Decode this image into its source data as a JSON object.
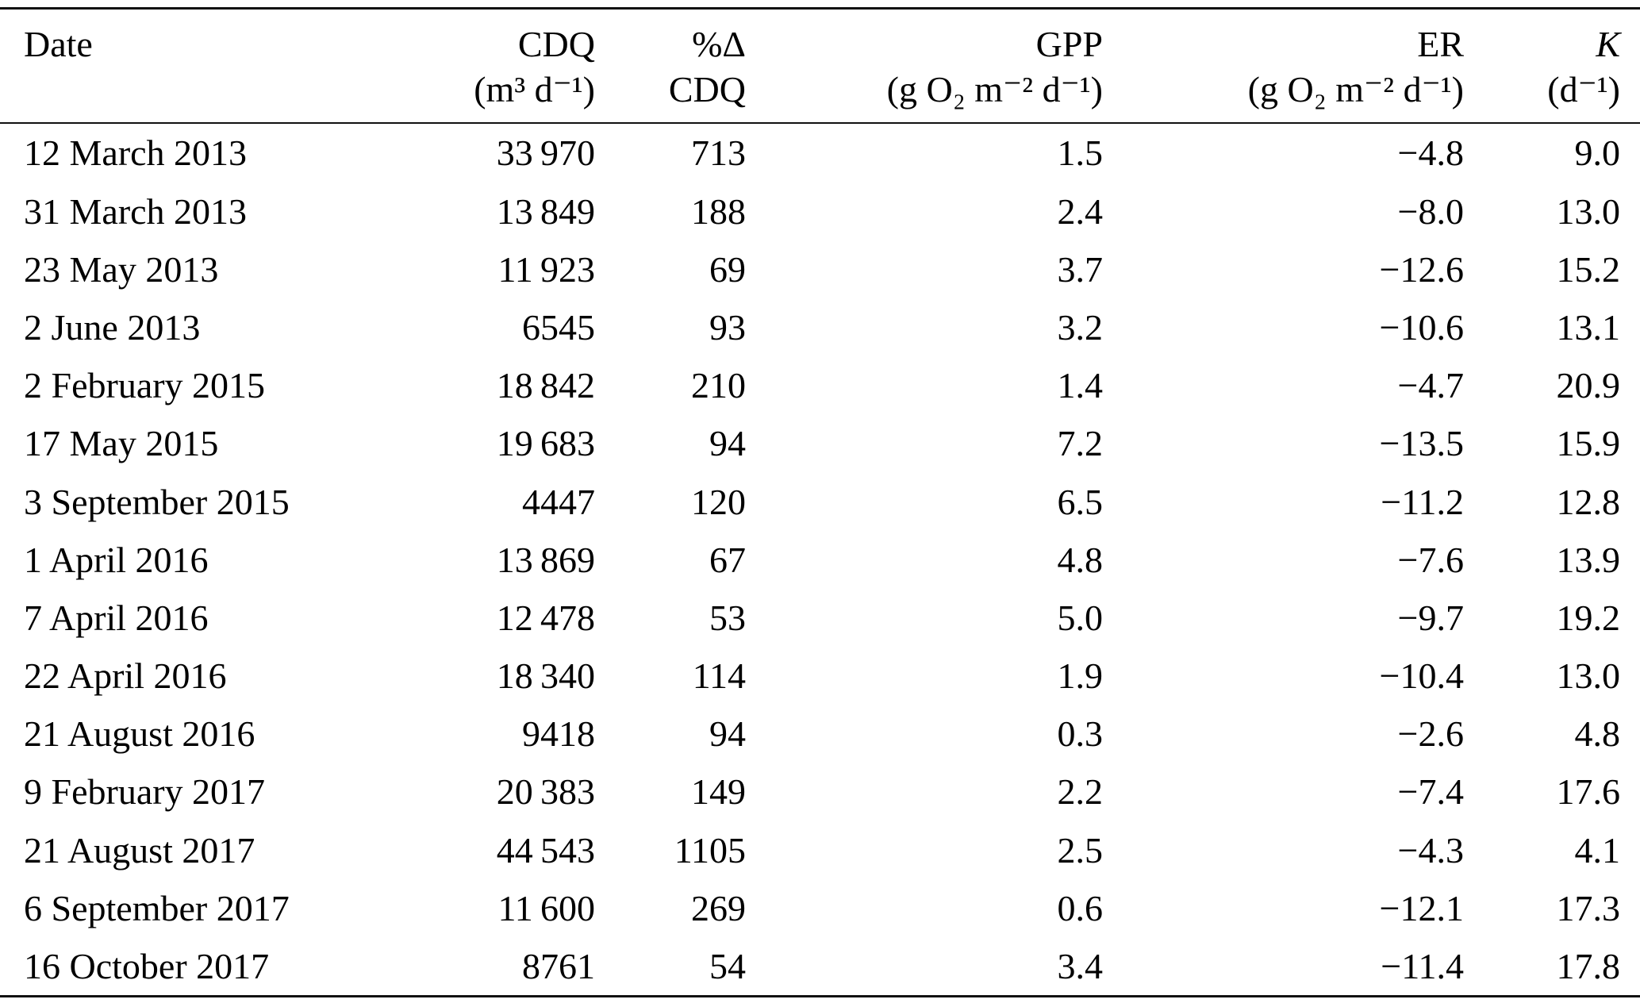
{
  "table": {
    "columns": [
      {
        "key": "date",
        "label": "Date",
        "unit": ""
      },
      {
        "key": "cdq",
        "label": "CDQ",
        "unit": "(m³ d⁻¹)"
      },
      {
        "key": "pct-delta-cdq",
        "label": "%Δ",
        "unit": "CDQ"
      },
      {
        "key": "gpp",
        "label": "GPP",
        "unit": "(g O₂ m⁻² d⁻¹)"
      },
      {
        "key": "er",
        "label": "ER",
        "unit": "(g O₂ m⁻² d⁻¹)"
      },
      {
        "key": "k",
        "label": "K",
        "unit": "(d⁻¹)",
        "italic": true
      }
    ],
    "rows": [
      [
        "12 March 2013",
        "33 970",
        "713",
        "1.5",
        "−4.8",
        "9.0"
      ],
      [
        "31 March 2013",
        "13 849",
        "188",
        "2.4",
        "−8.0",
        "13.0"
      ],
      [
        "23 May 2013",
        "11 923",
        "69",
        "3.7",
        "−12.6",
        "15.2"
      ],
      [
        "2 June 2013",
        "6545",
        "93",
        "3.2",
        "−10.6",
        "13.1"
      ],
      [
        "2 February 2015",
        "18 842",
        "210",
        "1.4",
        "−4.7",
        "20.9"
      ],
      [
        "17 May 2015",
        "19 683",
        "94",
        "7.2",
        "−13.5",
        "15.9"
      ],
      [
        "3 September 2015",
        "4447",
        "120",
        "6.5",
        "−11.2",
        "12.8"
      ],
      [
        "1 April 2016",
        "13 869",
        "67",
        "4.8",
        "−7.6",
        "13.9"
      ],
      [
        "7 April 2016",
        "12 478",
        "53",
        "5.0",
        "−9.7",
        "19.2"
      ],
      [
        "22 April 2016",
        "18 340",
        "114",
        "1.9",
        "−10.4",
        "13.0"
      ],
      [
        "21 August 2016",
        "9418",
        "94",
        "0.3",
        "−2.6",
        "4.8"
      ],
      [
        "9 February 2017",
        "20 383",
        "149",
        "2.2",
        "−7.4",
        "17.6"
      ],
      [
        "21 August 2017",
        "44 543",
        "1105",
        "2.5",
        "−4.3",
        "4.1"
      ],
      [
        "6 September 2017",
        "11 600",
        "269",
        "0.6",
        "−12.1",
        "17.3"
      ],
      [
        "16 October 2017",
        "8761",
        "54",
        "3.4",
        "−11.4",
        "17.8"
      ]
    ]
  }
}
